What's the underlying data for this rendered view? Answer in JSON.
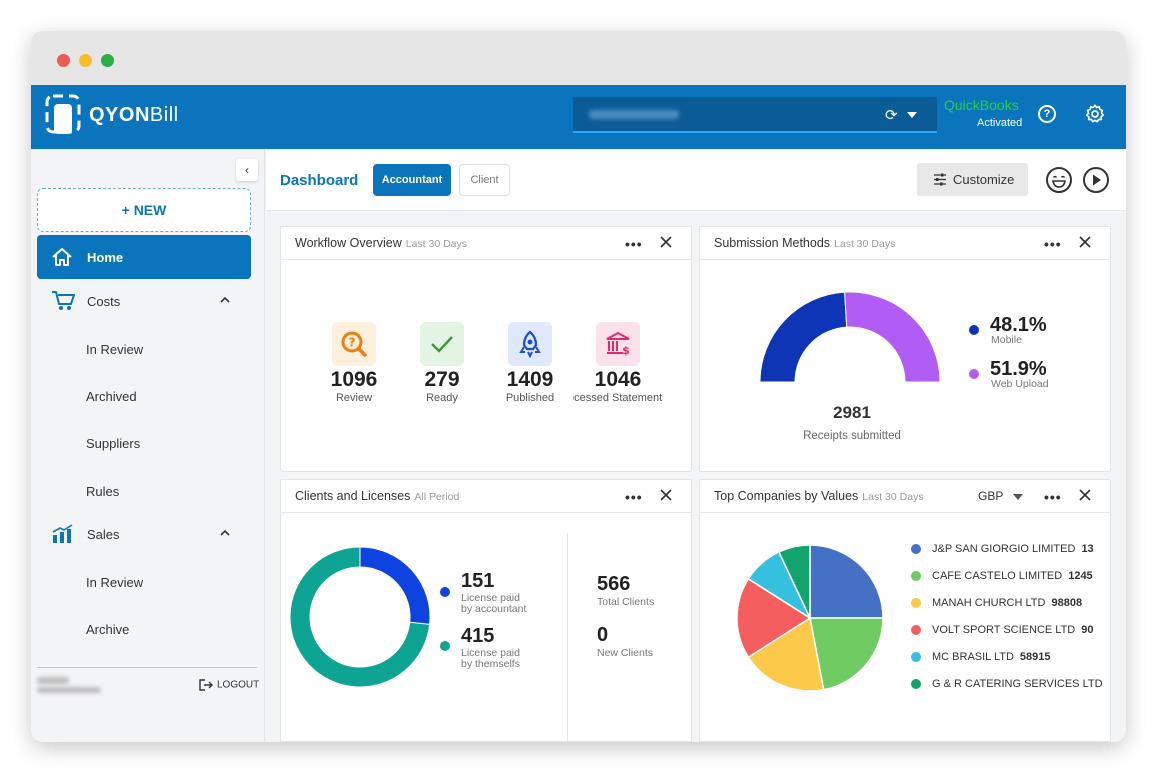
{
  "titlebar": {
    "dots": [
      "#ee5a52",
      "#f6be2e",
      "#2aad42"
    ]
  },
  "app": {
    "logo_bold": "QYON",
    "logo_light": "Bill",
    "quickbooks_title": "QuickBooks",
    "quickbooks_status": "Activated",
    "help_symbol": "?"
  },
  "sidebar": {
    "new_label": "+ NEW",
    "home_label": "Home",
    "costs_label": "Costs",
    "costs_items": [
      "In Review",
      "Archived",
      "Suppliers",
      "Rules"
    ],
    "sales_label": "Sales",
    "sales_items": [
      "In Review",
      "Archive"
    ],
    "logout_label": "LOGOUT"
  },
  "topbar": {
    "title": "Dashboard",
    "tab_accountant": "Accountant",
    "tab_client": "Client",
    "customize_label": "Customize"
  },
  "workflow": {
    "title": "Workflow Overview",
    "period": "Last 30 Days",
    "items": [
      {
        "value": "1096",
        "label": "Review"
      },
      {
        "value": "279",
        "label": "Ready"
      },
      {
        "value": "1409",
        "label": "Published"
      },
      {
        "value": "1046",
        "label": "Processed Statements"
      }
    ]
  },
  "submission": {
    "title": "Submission Methods",
    "period": "Last 30 Days",
    "mobile_pct": "48.1%",
    "mobile_label": "Mobile",
    "web_pct": "51.9%",
    "web_label": "Web Upload",
    "total": "2981",
    "total_label": "Receipts submitted"
  },
  "clients": {
    "title": "Clients and Licenses",
    "period": "All Period",
    "accountant_value": "151",
    "accountant_label_1": "License paid",
    "accountant_label_2": "by accountant",
    "self_value": "415",
    "self_label_1": "License paid",
    "self_label_2": "by themselfs",
    "total_clients": "566",
    "total_clients_label": "Total Clients",
    "new_clients": "0",
    "new_clients_label": "New Clients"
  },
  "companies": {
    "title": "Top Companies by Values",
    "period": "Last 30 Days",
    "currency": "GBP"
  },
  "chart_data": [
    {
      "type": "pie",
      "title": "Submission Methods",
      "categories": [
        "Mobile",
        "Web Upload"
      ],
      "values": [
        48.1,
        51.9
      ],
      "colors": [
        "#0d35b5",
        "#b05cf5"
      ]
    },
    {
      "type": "pie",
      "title": "Clients and Licenses",
      "categories": [
        "License paid by accountant",
        "License paid by themselfs"
      ],
      "values": [
        151,
        415
      ],
      "colors": [
        "#0e43e0",
        "#0ea493"
      ]
    },
    {
      "type": "pie",
      "title": "Top Companies by Values",
      "categories": [
        "J&P SAN GIORGIO LIMITED",
        "CAFE CASTELO LIMITED",
        "MANAH CHURCH LTD",
        "VOLT SPORT SCIENCE LTD",
        "MC BRASIL LTD",
        "G & R CATERING SERVICES LTD"
      ],
      "value_labels": [
        "13",
        "1245",
        "98808",
        "90",
        "58915",
        ""
      ],
      "values": [
        25,
        22,
        19,
        18,
        9,
        7
      ],
      "colors": [
        "#4471c4",
        "#6fcc63",
        "#fdc94a",
        "#f45e5e",
        "#36c0e0",
        "#13a36d"
      ]
    }
  ]
}
